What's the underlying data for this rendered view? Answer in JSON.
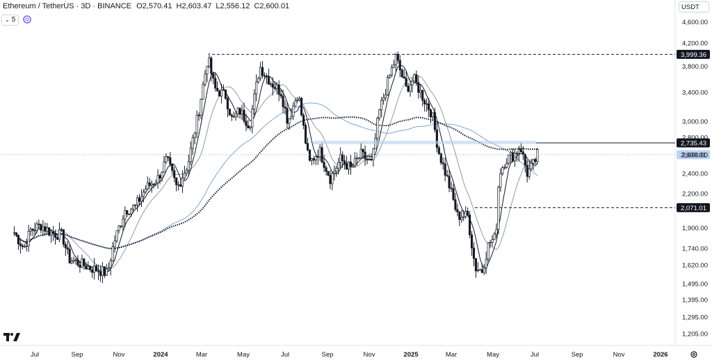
{
  "header": {
    "title": "Ethereum / TetherUS · 3D · BINANCE",
    "ohlc": [
      {
        "label": "O",
        "value": "2,570.41"
      },
      {
        "label": "H",
        "value": "2,603.47"
      },
      {
        "label": "L",
        "value": "2,556.12"
      },
      {
        "label": "C",
        "value": "2,600.01"
      }
    ],
    "interval_count": "5",
    "currency": "USDT"
  },
  "colors": {
    "up": "#131722",
    "down": "#131722",
    "ma_fast": "#131722",
    "ma_mid": "#9598a1",
    "ma_slow": "#7aa6d6",
    "ma_long": "#131722",
    "current_price": "#bbd3f5",
    "level_label": "#131722",
    "zone": "#b8cfef"
  },
  "chart_data": {
    "type": "candlestick",
    "y_axis": {
      "ticks": [
        "4,600.00",
        "4,200.00",
        "3,800.00",
        "3,400.00",
        "3,000.00",
        "2,800.00",
        "2,600.00",
        "2,400.00",
        "2,200.00",
        "2,071.01",
        "1,900.00",
        "1,740.00",
        "1,620.00",
        "1,495.00",
        "1,395.00",
        "1,295.00",
        "1,205.00"
      ],
      "tick_values": [
        4600,
        4200,
        3800,
        3400,
        3000,
        2800,
        2600,
        2400,
        2200,
        2071.01,
        1900,
        1740,
        1620,
        1495,
        1395,
        1295,
        1205
      ],
      "scale": "log"
    },
    "x_axis": {
      "labels": [
        "Jul",
        "Sep",
        "Nov",
        "2024",
        "Mar",
        "May",
        "Jul",
        "Sep",
        "Nov",
        "2025",
        "Mar",
        "May",
        "Jul",
        "Sep",
        "Nov",
        "2026"
      ],
      "dates": [
        "2023-07-01",
        "2023-09-01",
        "2023-11-01",
        "2024-01-01",
        "2024-03-01",
        "2024-05-01",
        "2024-07-01",
        "2024-09-01",
        "2024-11-01",
        "2025-01-01",
        "2025-03-01",
        "2025-05-01",
        "2025-07-01",
        "2025-09-01",
        "2025-11-01",
        "2026-01-01"
      ]
    },
    "price_levels": [
      {
        "value": 3999.36,
        "label": "3,999.36",
        "style": "dashed"
      },
      {
        "value": 2735.43,
        "label": "2,735.43",
        "style": "solid"
      },
      {
        "value": 2600.01,
        "label": "2,600.01",
        "style": "current"
      },
      {
        "value": 2071.01,
        "label": "2,071.01",
        "style": "dashed"
      }
    ],
    "zone": {
      "from": 2720,
      "to": 2760
    },
    "closes": [
      {
        "date": "2023-06-01",
        "close": 1860
      },
      {
        "date": "2023-06-15",
        "close": 1740
      },
      {
        "date": "2023-06-25",
        "close": 1880
      },
      {
        "date": "2023-07-10",
        "close": 1920
      },
      {
        "date": "2023-07-25",
        "close": 1860
      },
      {
        "date": "2023-08-10",
        "close": 1840
      },
      {
        "date": "2023-08-20",
        "close": 1660
      },
      {
        "date": "2023-09-05",
        "close": 1630
      },
      {
        "date": "2023-09-20",
        "close": 1600
      },
      {
        "date": "2023-10-05",
        "close": 1580
      },
      {
        "date": "2023-10-15",
        "close": 1560
      },
      {
        "date": "2023-10-25",
        "close": 1790
      },
      {
        "date": "2023-11-10",
        "close": 2050
      },
      {
        "date": "2023-11-25",
        "close": 2080
      },
      {
        "date": "2023-12-10",
        "close": 2250
      },
      {
        "date": "2023-12-28",
        "close": 2350
      },
      {
        "date": "2024-01-10",
        "close": 2550
      },
      {
        "date": "2024-01-25",
        "close": 2250
      },
      {
        "date": "2024-02-10",
        "close": 2500
      },
      {
        "date": "2024-02-25",
        "close": 3100
      },
      {
        "date": "2024-03-10",
        "close": 3950
      },
      {
        "date": "2024-03-20",
        "close": 3450
      },
      {
        "date": "2024-04-05",
        "close": 3350
      },
      {
        "date": "2024-04-15",
        "close": 3000
      },
      {
        "date": "2024-04-25",
        "close": 3150
      },
      {
        "date": "2024-05-10",
        "close": 2950
      },
      {
        "date": "2024-05-25",
        "close": 3800
      },
      {
        "date": "2024-06-10",
        "close": 3550
      },
      {
        "date": "2024-06-25",
        "close": 3400
      },
      {
        "date": "2024-07-05",
        "close": 3000
      },
      {
        "date": "2024-07-20",
        "close": 3400
      },
      {
        "date": "2024-08-05",
        "close": 2500
      },
      {
        "date": "2024-08-20",
        "close": 2650
      },
      {
        "date": "2024-09-05",
        "close": 2350
      },
      {
        "date": "2024-09-20",
        "close": 2550
      },
      {
        "date": "2024-10-05",
        "close": 2450
      },
      {
        "date": "2024-10-20",
        "close": 2600
      },
      {
        "date": "2024-11-05",
        "close": 2500
      },
      {
        "date": "2024-11-15",
        "close": 3100
      },
      {
        "date": "2024-12-01",
        "close": 3650
      },
      {
        "date": "2024-12-10",
        "close": 3950
      },
      {
        "date": "2024-12-25",
        "close": 3450
      },
      {
        "date": "2025-01-05",
        "close": 3600
      },
      {
        "date": "2025-01-20",
        "close": 3300
      },
      {
        "date": "2025-02-01",
        "close": 3100
      },
      {
        "date": "2025-02-10",
        "close": 2650
      },
      {
        "date": "2025-02-25",
        "close": 2300
      },
      {
        "date": "2025-03-10",
        "close": 2000
      },
      {
        "date": "2025-03-25",
        "close": 2000
      },
      {
        "date": "2025-04-05",
        "close": 1600
      },
      {
        "date": "2025-04-15",
        "close": 1580
      },
      {
        "date": "2025-04-25",
        "close": 1780
      },
      {
        "date": "2025-05-05",
        "close": 1820
      },
      {
        "date": "2025-05-10",
        "close": 2400
      },
      {
        "date": "2025-05-20",
        "close": 2550
      },
      {
        "date": "2025-06-01",
        "close": 2600
      },
      {
        "date": "2025-06-10",
        "close": 2700
      },
      {
        "date": "2025-06-20",
        "close": 2400
      },
      {
        "date": "2025-06-30",
        "close": 2500
      },
      {
        "date": "2025-07-05",
        "close": 2600
      }
    ]
  }
}
